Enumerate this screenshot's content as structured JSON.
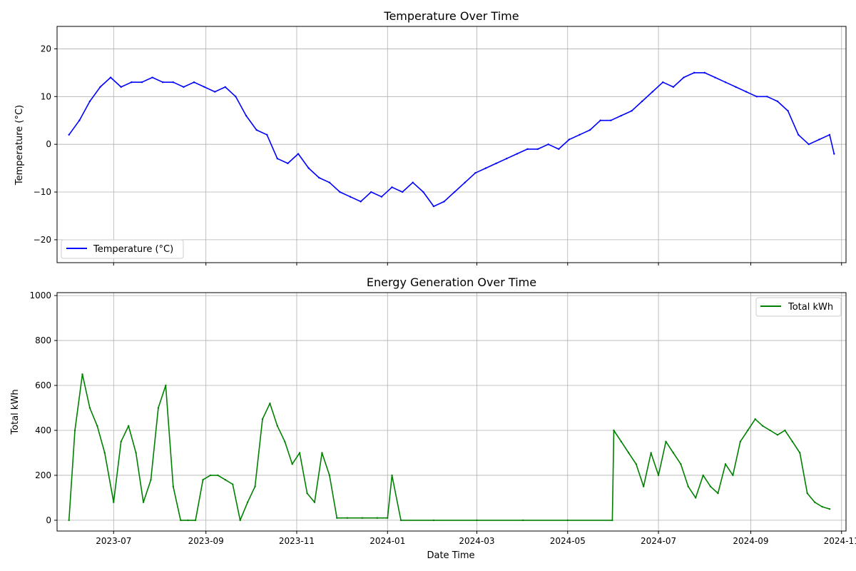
{
  "chart_data": [
    {
      "type": "line",
      "title": "Temperature Over Time",
      "xlabel": "",
      "ylabel": "Temperature (°C)",
      "xlim": [
        "2023-05-24",
        "2024-11-04"
      ],
      "ylim": [
        -24.8,
        24.7
      ],
      "grid": true,
      "legend_position": "lower-left",
      "x_ticks": [],
      "y_ticks": [
        "−20",
        "−10",
        "0",
        "10",
        "20"
      ],
      "series": [
        {
          "name": "Temperature (°C)",
          "color": "#0000ff",
          "x": [
            "2023-06-01",
            "2023-06-08",
            "2023-06-15",
            "2023-06-22",
            "2023-06-29",
            "2023-07-06",
            "2023-07-13",
            "2023-07-20",
            "2023-07-27",
            "2023-08-03",
            "2023-08-10",
            "2023-08-17",
            "2023-08-24",
            "2023-08-31",
            "2023-09-07",
            "2023-09-14",
            "2023-09-21",
            "2023-09-28",
            "2023-10-05",
            "2023-10-12",
            "2023-10-19",
            "2023-10-26",
            "2023-11-02",
            "2023-11-09",
            "2023-11-16",
            "2023-11-23",
            "2023-11-30",
            "2023-12-07",
            "2023-12-14",
            "2023-12-21",
            "2023-12-28",
            "2024-01-04",
            "2024-01-11",
            "2024-01-18",
            "2024-01-25",
            "2024-02-01",
            "2024-02-08",
            "2024-02-15",
            "2024-02-22",
            "2024-02-29",
            "2024-03-07",
            "2024-03-14",
            "2024-03-21",
            "2024-03-28",
            "2024-04-04",
            "2024-04-11",
            "2024-04-18",
            "2024-04-25",
            "2024-05-02",
            "2024-05-09",
            "2024-05-16",
            "2024-05-23",
            "2024-05-30",
            "2024-06-06",
            "2024-06-13",
            "2024-06-20",
            "2024-06-27",
            "2024-07-04",
            "2024-07-11",
            "2024-07-18",
            "2024-07-25",
            "2024-08-01",
            "2024-08-08",
            "2024-08-15",
            "2024-08-22",
            "2024-08-29",
            "2024-09-05",
            "2024-09-12",
            "2024-09-19",
            "2024-09-26",
            "2024-10-03",
            "2024-10-10",
            "2024-10-17",
            "2024-10-24",
            "2024-10-27"
          ],
          "values": [
            2,
            5,
            9,
            12,
            14,
            12,
            13,
            13,
            14,
            13,
            13,
            12,
            13,
            12,
            11,
            12,
            10,
            6,
            3,
            2,
            -3,
            -4,
            -2,
            -5,
            -7,
            -8,
            -10,
            -11,
            -12,
            -10,
            -11,
            -9,
            -10,
            -8,
            -10,
            -13,
            -12,
            -10,
            -8,
            -6,
            -5,
            -4,
            -3,
            -2,
            -1,
            -1,
            0,
            -1,
            1,
            2,
            3,
            5,
            5,
            6,
            7,
            9,
            11,
            13,
            12,
            14,
            15,
            15,
            14,
            13,
            12,
            11,
            10,
            10,
            9,
            7,
            2,
            0,
            1,
            2,
            -2
          ]
        }
      ]
    },
    {
      "type": "line",
      "title": "Energy Generation Over Time",
      "xlabel": "Date Time",
      "ylabel": "Total kWh",
      "xlim": [
        "2023-05-24",
        "2024-11-04"
      ],
      "ylim": [
        -48,
        1013
      ],
      "grid": true,
      "legend_position": "upper-right",
      "x_ticks": [
        "2023-07",
        "2023-09",
        "2023-11",
        "2024-01",
        "2024-03",
        "2024-05",
        "2024-07",
        "2024-09",
        "2024-11"
      ],
      "y_ticks": [
        "0",
        "200",
        "400",
        "600",
        "800",
        "1000"
      ],
      "series": [
        {
          "name": "Total kWh",
          "color": "#008000",
          "x": [
            "2023-06-01",
            "2023-06-05",
            "2023-06-10",
            "2023-06-15",
            "2023-06-20",
            "2023-06-25",
            "2023-07-01",
            "2023-07-06",
            "2023-07-11",
            "2023-07-16",
            "2023-07-21",
            "2023-07-26",
            "2023-07-31",
            "2023-08-05",
            "2023-08-10",
            "2023-08-15",
            "2023-08-20",
            "2023-08-25",
            "2023-08-30",
            "2023-09-04",
            "2023-09-09",
            "2023-09-14",
            "2023-09-19",
            "2023-09-24",
            "2023-09-29",
            "2023-10-04",
            "2023-10-09",
            "2023-10-14",
            "2023-10-19",
            "2023-10-24",
            "2023-10-29",
            "2023-11-03",
            "2023-11-08",
            "2023-11-13",
            "2023-11-18",
            "2023-11-23",
            "2023-11-28",
            "2023-12-05",
            "2023-12-15",
            "2023-12-25",
            "2024-01-01",
            "2024-01-04",
            "2024-01-10",
            "2024-02-01",
            "2024-03-01",
            "2024-04-01",
            "2024-05-01",
            "2024-05-31",
            "2024-06-01",
            "2024-06-06",
            "2024-06-11",
            "2024-06-16",
            "2024-06-21",
            "2024-06-26",
            "2024-07-01",
            "2024-07-06",
            "2024-07-11",
            "2024-07-16",
            "2024-07-21",
            "2024-07-26",
            "2024-07-31",
            "2024-08-05",
            "2024-08-10",
            "2024-08-15",
            "2024-08-20",
            "2024-08-25",
            "2024-08-30",
            "2024-09-04",
            "2024-09-09",
            "2024-09-14",
            "2024-09-19",
            "2024-09-24",
            "2024-09-29",
            "2024-10-04",
            "2024-10-09",
            "2024-10-14",
            "2024-10-19",
            "2024-10-24"
          ],
          "values": [
            0,
            400,
            650,
            500,
            420,
            300,
            80,
            350,
            420,
            300,
            80,
            180,
            500,
            600,
            150,
            0,
            0,
            0,
            180,
            200,
            200,
            180,
            160,
            0,
            80,
            150,
            450,
            520,
            420,
            350,
            250,
            300,
            120,
            80,
            300,
            200,
            10,
            10,
            10,
            10,
            10,
            200,
            0,
            0,
            0,
            0,
            0,
            0,
            400,
            350,
            300,
            250,
            150,
            300,
            200,
            350,
            300,
            250,
            150,
            100,
            200,
            150,
            120,
            250,
            200,
            350,
            400,
            450,
            420,
            400,
            380,
            400,
            350,
            300,
            120,
            80,
            60,
            50
          ]
        }
      ]
    }
  ]
}
